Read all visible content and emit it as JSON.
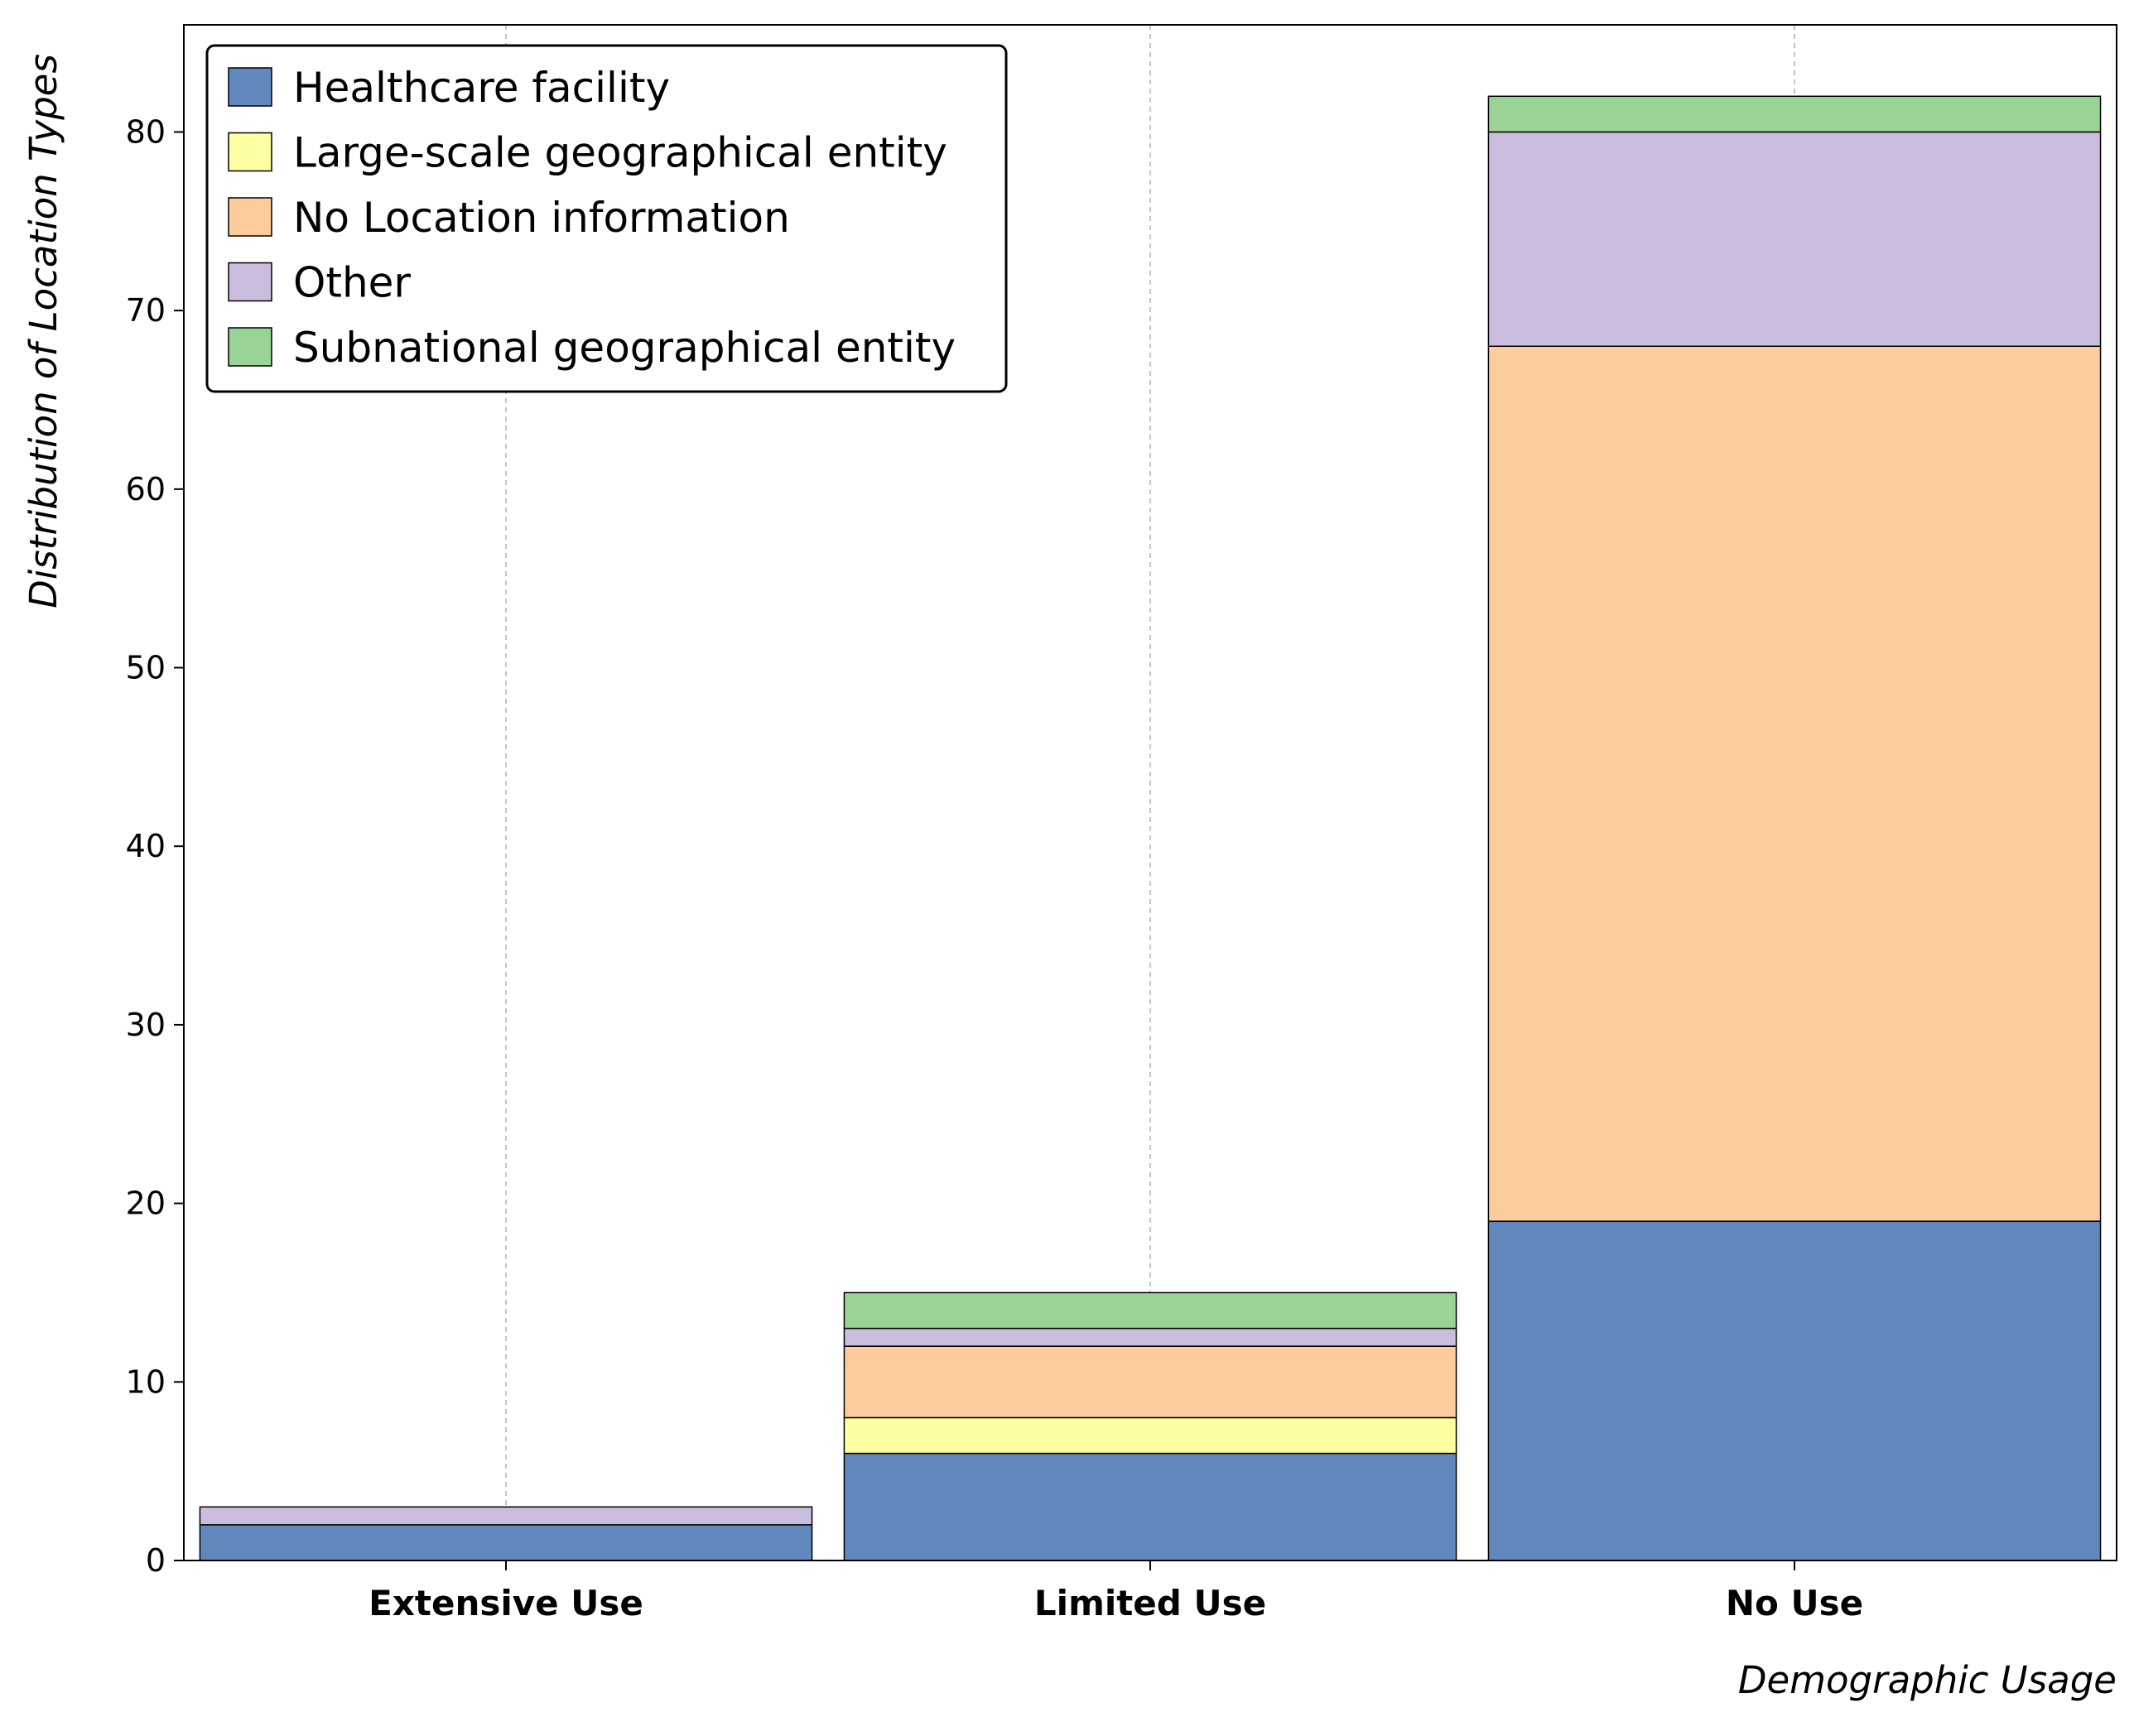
{
  "chart_data": {
    "type": "bar",
    "stacked": true,
    "title": "",
    "xlabel": "Demographic Usage",
    "ylabel": "Distribution of Location Types",
    "categories": [
      "Extensive Use",
      "Limited Use",
      "No Use"
    ],
    "series": [
      {
        "name": "Healthcare facility",
        "values": [
          2,
          6,
          19
        ],
        "color": "#6088bd"
      },
      {
        "name": "Large-scale geographical entity",
        "values": [
          0,
          2,
          0
        ],
        "color": "#fefea2"
      },
      {
        "name": "No Location information",
        "values": [
          0,
          4,
          49
        ],
        "color": "#fdcc9c"
      },
      {
        "name": "Other",
        "values": [
          1,
          1,
          12
        ],
        "color": "#cabddd"
      },
      {
        "name": "Subnational geographical entity",
        "values": [
          0,
          2,
          2
        ],
        "color": "#9ad396"
      }
    ],
    "ylim": [
      0,
      86
    ],
    "yticks": [
      0,
      10,
      20,
      30,
      40,
      50,
      60,
      70,
      80
    ],
    "grid": "vertical-dashed",
    "legend_position": "top-left"
  }
}
